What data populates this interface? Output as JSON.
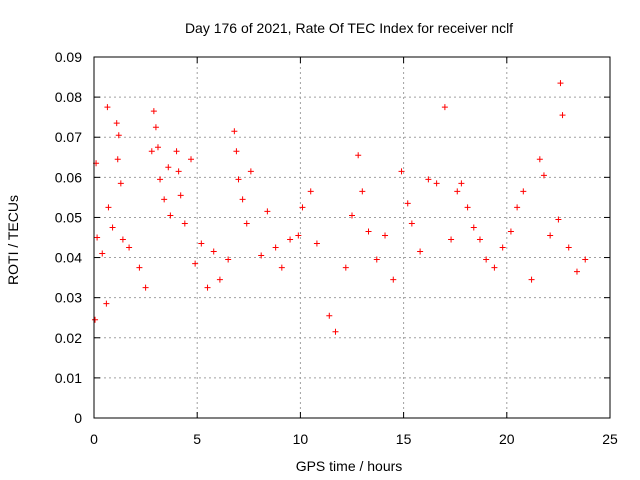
{
  "chart_data": {
    "type": "scatter",
    "title": "Day 176 of 2021, Rate Of TEC Index for receiver nclf",
    "xlabel": "GPS time / hours",
    "ylabel": "ROTI / TECUs",
    "xlim": [
      0,
      25
    ],
    "ylim": [
      0,
      0.09
    ],
    "x_ticks": [
      0,
      5,
      10,
      15,
      20,
      25
    ],
    "x_tick_labels": [
      "0",
      "5",
      "10",
      "15",
      "20",
      "25"
    ],
    "y_ticks": [
      0,
      0.01,
      0.02,
      0.03,
      0.04,
      0.05,
      0.06,
      0.07,
      0.08,
      0.09
    ],
    "y_tick_labels": [
      "0",
      "0.01",
      "0.02",
      "0.03",
      "0.04",
      "0.05",
      "0.06",
      "0.07",
      "0.08",
      "0.09"
    ],
    "grid": true,
    "legend": "none",
    "marker": "plus",
    "color": "#ff0000",
    "x_data_range": [
      0,
      24
    ],
    "series": [
      {
        "points": [
          [
            0.05,
            0.0245
          ],
          [
            0.1,
            0.0635
          ],
          [
            0.15,
            0.045
          ],
          [
            0.4,
            0.041
          ],
          [
            0.6,
            0.0285
          ],
          [
            0.65,
            0.0775
          ],
          [
            0.7,
            0.0525
          ],
          [
            0.9,
            0.0475
          ],
          [
            1.1,
            0.0735
          ],
          [
            1.15,
            0.0645
          ],
          [
            1.2,
            0.0705
          ],
          [
            1.3,
            0.0585
          ],
          [
            1.4,
            0.0445
          ],
          [
            1.7,
            0.0425
          ],
          [
            2.2,
            0.0375
          ],
          [
            2.5,
            0.0325
          ],
          [
            2.8,
            0.0665
          ],
          [
            2.9,
            0.0765
          ],
          [
            3.0,
            0.0725
          ],
          [
            3.1,
            0.0675
          ],
          [
            3.2,
            0.0595
          ],
          [
            3.4,
            0.0545
          ],
          [
            3.6,
            0.0625
          ],
          [
            3.7,
            0.0505
          ],
          [
            4.0,
            0.0665
          ],
          [
            4.1,
            0.0615
          ],
          [
            4.2,
            0.0555
          ],
          [
            4.4,
            0.0485
          ],
          [
            4.7,
            0.0645
          ],
          [
            4.9,
            0.0385
          ],
          [
            5.2,
            0.0435
          ],
          [
            5.5,
            0.0325
          ],
          [
            5.8,
            0.0415
          ],
          [
            6.1,
            0.0345
          ],
          [
            6.5,
            0.0395
          ],
          [
            6.8,
            0.0715
          ],
          [
            6.9,
            0.0665
          ],
          [
            7.0,
            0.0595
          ],
          [
            7.2,
            0.0545
          ],
          [
            7.4,
            0.0485
          ],
          [
            7.6,
            0.0615
          ],
          [
            8.1,
            0.0405
          ],
          [
            8.4,
            0.0515
          ],
          [
            8.8,
            0.0425
          ],
          [
            9.1,
            0.0375
          ],
          [
            9.5,
            0.0445
          ],
          [
            9.9,
            0.0455
          ],
          [
            10.1,
            0.0525
          ],
          [
            10.5,
            0.0565
          ],
          [
            10.8,
            0.0435
          ],
          [
            11.4,
            0.0255
          ],
          [
            11.7,
            0.0215
          ],
          [
            12.2,
            0.0375
          ],
          [
            12.5,
            0.0505
          ],
          [
            12.8,
            0.0655
          ],
          [
            13.0,
            0.0565
          ],
          [
            13.3,
            0.0465
          ],
          [
            13.7,
            0.0395
          ],
          [
            14.1,
            0.0455
          ],
          [
            14.5,
            0.0345
          ],
          [
            14.9,
            0.0615
          ],
          [
            15.2,
            0.0535
          ],
          [
            15.4,
            0.0485
          ],
          [
            15.8,
            0.0415
          ],
          [
            16.2,
            0.0595
          ],
          [
            16.6,
            0.0585
          ],
          [
            17.0,
            0.0775
          ],
          [
            17.3,
            0.0445
          ],
          [
            17.6,
            0.0565
          ],
          [
            17.8,
            0.0585
          ],
          [
            18.1,
            0.0525
          ],
          [
            18.4,
            0.0475
          ],
          [
            18.7,
            0.0445
          ],
          [
            19.0,
            0.0395
          ],
          [
            19.4,
            0.0375
          ],
          [
            19.8,
            0.0425
          ],
          [
            20.2,
            0.0465
          ],
          [
            20.5,
            0.0525
          ],
          [
            20.8,
            0.0565
          ],
          [
            21.2,
            0.0345
          ],
          [
            21.6,
            0.0645
          ],
          [
            21.8,
            0.0605
          ],
          [
            22.1,
            0.0455
          ],
          [
            22.5,
            0.0495
          ],
          [
            22.6,
            0.0835
          ],
          [
            22.7,
            0.0755
          ],
          [
            23.0,
            0.0425
          ],
          [
            23.4,
            0.0365
          ],
          [
            23.8,
            0.0395
          ]
        ]
      }
    ]
  }
}
